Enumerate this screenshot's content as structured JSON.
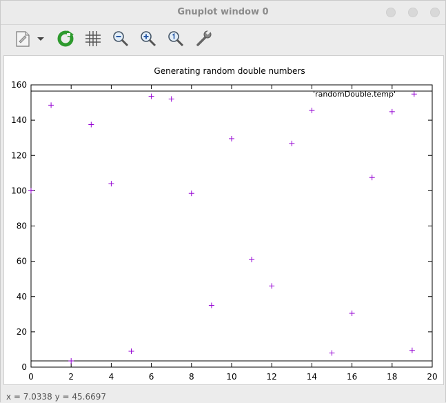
{
  "window": {
    "title": "Gnuplot window 0"
  },
  "toolbar": {
    "items": [
      {
        "name": "copy-to-clipboard-button",
        "icon": "document-icon"
      },
      {
        "name": "export-dropdown-button",
        "icon": "chevron-down-icon"
      },
      {
        "name": "replot-button",
        "icon": "refresh-icon"
      },
      {
        "name": "grid-toggle-button",
        "icon": "grid-icon"
      },
      {
        "name": "zoom-out-button",
        "icon": "zoom-out-icon"
      },
      {
        "name": "zoom-in-button",
        "icon": "zoom-in-icon"
      },
      {
        "name": "zoom-reset-button",
        "icon": "zoom-reset-icon"
      },
      {
        "name": "settings-button",
        "icon": "wrench-icon"
      }
    ]
  },
  "status": {
    "text": "x = 7.0338 y = 45.6697"
  },
  "colors": {
    "series": "#9400d3",
    "axis": "#000000"
  },
  "chart_data": {
    "type": "scatter",
    "title": "Generating random double numbers",
    "xlabel": "",
    "ylabel": "",
    "xlim": [
      0,
      20
    ],
    "ylim": [
      0,
      160
    ],
    "xticks": [
      0,
      2,
      4,
      6,
      8,
      10,
      12,
      14,
      16,
      18,
      20
    ],
    "yticks": [
      0,
      20,
      40,
      60,
      80,
      100,
      120,
      140,
      160
    ],
    "grid": false,
    "legend_position": "top-right",
    "series": [
      {
        "name": "'randomDouble.temp'",
        "x": [
          0,
          1,
          2,
          3,
          4,
          5,
          6,
          7,
          8,
          9,
          10,
          11,
          12,
          13,
          14,
          15,
          16,
          17,
          18,
          19
        ],
        "y": [
          100,
          148.5,
          3.5,
          137.5,
          104,
          9,
          153.5,
          152,
          98.5,
          35,
          129.5,
          61,
          46,
          126.8,
          145.5,
          8,
          30.5,
          107.5,
          144.8,
          9.5
        ]
      }
    ],
    "extra_points": [
      {
        "x": 19.1,
        "y": 154.8
      }
    ]
  }
}
